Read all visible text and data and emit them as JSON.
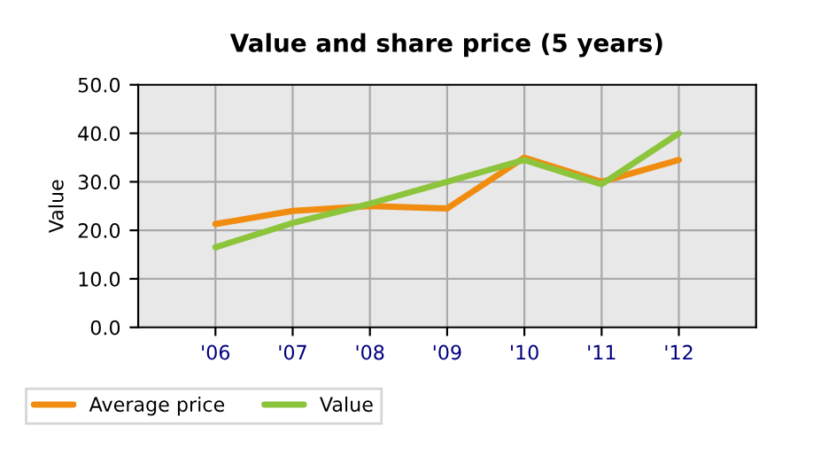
{
  "chart_data": {
    "type": "line",
    "title": "Value and share price (5 years)",
    "ylabel": "Value",
    "categories": [
      "'06",
      "'07",
      "'08",
      "'09",
      "'10",
      "'11",
      "'12"
    ],
    "series": [
      {
        "name": "Average price",
        "color": "#f08c10",
        "values": [
          21.3,
          24.0,
          25.0,
          24.5,
          35.0,
          30.0,
          34.5
        ]
      },
      {
        "name": "Value",
        "color": "#8cc43c",
        "values": [
          16.5,
          21.5,
          25.5,
          30.0,
          34.5,
          29.5,
          40.0
        ]
      }
    ],
    "ylim": [
      0,
      50
    ],
    "yticks": [
      {
        "value": 0,
        "label": "0.0"
      },
      {
        "value": 10,
        "label": "10.0"
      },
      {
        "value": 20,
        "label": "20.0"
      },
      {
        "value": 30,
        "label": "30.0"
      },
      {
        "value": 40,
        "label": "40.0"
      },
      {
        "value": 50,
        "label": "50.0"
      }
    ],
    "grid": true,
    "legend": "bottom left",
    "marker": "none",
    "line_style": "solid"
  }
}
